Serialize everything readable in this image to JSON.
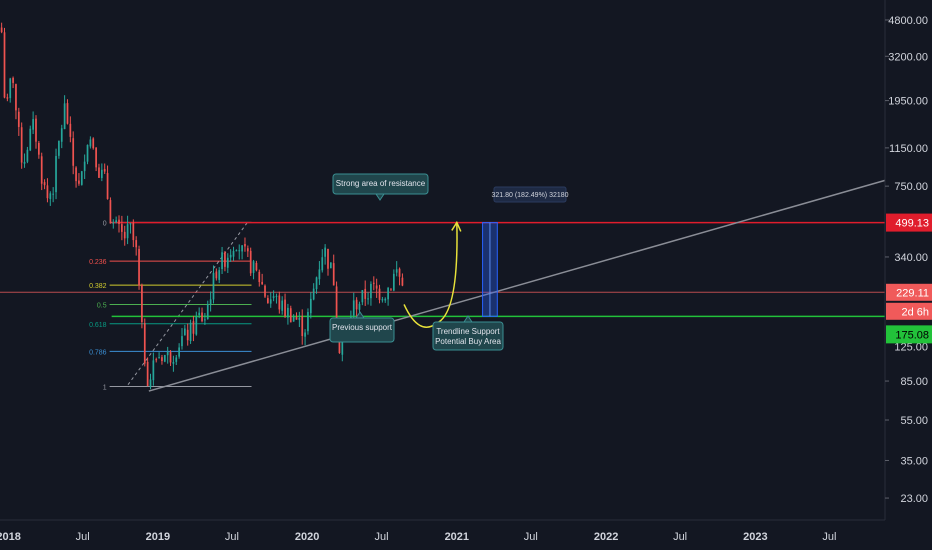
{
  "colors": {
    "background": "#131722",
    "axis_text": "#d1d4dc",
    "candle_up": "#26a69a",
    "candle_down": "#ef5350",
    "resistance_line": "#e01d2c",
    "support_line": "#22c23a",
    "current_price_line": "#e05a5a",
    "trendline": "#8a8d96",
    "projection_curve": "#e8e23a",
    "target_box": "#2962ff",
    "fib_0": "#9598a1",
    "fib_0236": "#f0504c",
    "fib_0382": "#d2cc2e",
    "fib_05": "#4caf50",
    "fib_0618": "#089981",
    "fib_0786": "#3b8fd4",
    "fib_1": "#9598a1",
    "callout_bg": "#20464c",
    "callout_border": "#3a8f92"
  },
  "price_axis": {
    "ticks": [
      "4800.00",
      "3200.00",
      "1950.00",
      "1150.00",
      "750.00",
      "340.00",
      "85.00",
      "55.00",
      "35.00",
      "23.00"
    ],
    "hidden_tick": "125.00"
  },
  "time_axis": {
    "ticks": [
      "2018",
      "Jul",
      "2019",
      "Jul",
      "2020",
      "Jul",
      "2021",
      "Jul",
      "2022",
      "Jul",
      "2023",
      "Jul"
    ]
  },
  "price_tags": {
    "resistance": "499.13",
    "last": "229.11",
    "countdown": "2d 6h",
    "support": "175.08"
  },
  "fib_labels": [
    "0",
    "0.236",
    "0.382",
    "0.5",
    "0.618",
    "0.786",
    "1"
  ],
  "annotations": {
    "resistance": "Strong area of resistance",
    "previous_support": "Previous support",
    "trendline_line1": "Trendline Support",
    "trendline_line2": "Potential Buy Area",
    "measure": "321.80 (182.49%) 32180"
  },
  "chart_data": {
    "type": "candlestick",
    "scale": "log",
    "interval": "weekly",
    "ylim": [
      18,
      6000
    ],
    "xlim": [
      "2017-12-11",
      "2023-11-14"
    ],
    "levels": {
      "strong_resistance": 499.13,
      "previous_support": 175.08,
      "last_price": 229.11
    },
    "fibonacci": {
      "swing_high": 500,
      "swing_low": 80,
      "levels": [
        0,
        0.236,
        0.382,
        0.5,
        0.618,
        0.786,
        1
      ]
    },
    "trendline": {
      "from": {
        "date": "2018-12-10",
        "price": 76
      },
      "to": {
        "date": "2023-11-14",
        "price": 800
      }
    },
    "projection": {
      "from": {
        "date": "2020-08-25",
        "price": 200
      },
      "low": {
        "date": "2020-10-25",
        "price": 170
      },
      "to": {
        "date": "2021-01-01",
        "price": 500
      }
    },
    "target_range": {
      "start": "2021-03-05",
      "end": "2021-04-10",
      "low": 175.08,
      "high": 499.13
    },
    "price_path": [
      [
        "2017-12-15",
        4200
      ],
      [
        "2017-12-25",
        1600
      ],
      [
        "2018-01-10",
        2800
      ],
      [
        "2018-01-22",
        1500
      ],
      [
        "2018-02-05",
        950
      ],
      [
        "2018-02-20",
        1300
      ],
      [
        "2018-03-05",
        1500
      ],
      [
        "2018-03-20",
        900
      ],
      [
        "2018-04-05",
        650
      ],
      [
        "2018-04-20",
        750
      ],
      [
        "2018-05-05",
        1250
      ],
      [
        "2018-05-20",
        1900
      ],
      [
        "2018-06-05",
        1000
      ],
      [
        "2018-06-25",
        700
      ],
      [
        "2018-07-10",
        1300
      ],
      [
        "2018-07-25",
        1250
      ],
      [
        "2018-08-10",
        900
      ],
      [
        "2018-08-25",
        800
      ],
      [
        "2018-09-10",
        500
      ],
      [
        "2018-09-25",
        460
      ],
      [
        "2018-10-10",
        420
      ],
      [
        "2018-10-25",
        470
      ],
      [
        "2018-11-10",
        350
      ],
      [
        "2018-11-25",
        130
      ],
      [
        "2018-12-10",
        82
      ],
      [
        "2018-12-25",
        110
      ],
      [
        "2019-01-10",
        115
      ],
      [
        "2019-01-25",
        112
      ],
      [
        "2019-02-10",
        118
      ],
      [
        "2019-02-25",
        135
      ],
      [
        "2019-03-10",
        140
      ],
      [
        "2019-03-25",
        150
      ],
      [
        "2019-04-10",
        175
      ],
      [
        "2019-04-25",
        170
      ],
      [
        "2019-05-10",
        230
      ],
      [
        "2019-05-25",
        300
      ],
      [
        "2019-06-10",
        330
      ],
      [
        "2019-06-25",
        360
      ],
      [
        "2019-07-10",
        420
      ],
      [
        "2019-07-25",
        360
      ],
      [
        "2019-08-10",
        330
      ],
      [
        "2019-08-25",
        290
      ],
      [
        "2019-09-10",
        260
      ],
      [
        "2019-09-25",
        210
      ],
      [
        "2019-10-10",
        220
      ],
      [
        "2019-10-25",
        200
      ],
      [
        "2019-11-10",
        185
      ],
      [
        "2019-11-25",
        180
      ],
      [
        "2019-12-10",
        165
      ],
      [
        "2019-12-25",
        150
      ],
      [
        "2020-01-10",
        200
      ],
      [
        "2020-01-25",
        280
      ],
      [
        "2020-02-10",
        380
      ],
      [
        "2020-02-25",
        310
      ],
      [
        "2020-03-10",
        250
      ],
      [
        "2020-03-15",
        115
      ],
      [
        "2020-03-25",
        140
      ],
      [
        "2020-04-10",
        165
      ],
      [
        "2020-04-25",
        200
      ],
      [
        "2020-05-10",
        210
      ],
      [
        "2020-05-25",
        225
      ],
      [
        "2020-06-10",
        240
      ],
      [
        "2020-06-25",
        230
      ],
      [
        "2020-07-10",
        230
      ],
      [
        "2020-07-25",
        255
      ],
      [
        "2020-08-05",
        295
      ],
      [
        "2020-08-15",
        270
      ],
      [
        "2020-08-25",
        230
      ]
    ]
  }
}
